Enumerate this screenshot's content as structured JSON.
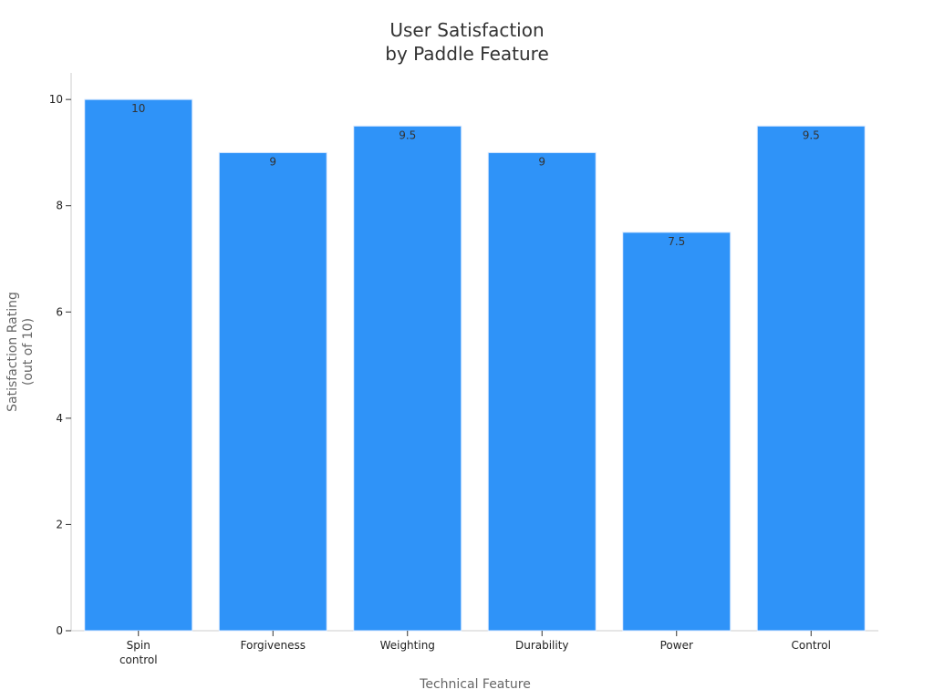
{
  "chart_data": {
    "type": "bar",
    "title_lines": [
      "User Satisfaction",
      "by Paddle Feature"
    ],
    "xlabel": "Technical Feature",
    "ylabel_lines": [
      "Satisfaction Rating",
      "(out of 10)"
    ],
    "categories": [
      [
        "Spin",
        "control"
      ],
      [
        "Forgiveness"
      ],
      [
        "Weighting"
      ],
      [
        "Durability"
      ],
      [
        "Power"
      ],
      [
        "Control"
      ]
    ],
    "values": [
      10,
      9,
      9.5,
      9,
      7.5,
      9.5
    ],
    "data_labels": [
      "10",
      "9",
      "9.5",
      "9",
      "7.5",
      "9.5"
    ],
    "ylim": [
      0,
      10.5
    ],
    "yticks": [
      0,
      2,
      4,
      6,
      8,
      10
    ],
    "ytick_labels": [
      "0",
      "2",
      "4",
      "6",
      "8",
      "10"
    ],
    "bar_color": "#2f93f8",
    "grid": false,
    "legend": "none"
  }
}
